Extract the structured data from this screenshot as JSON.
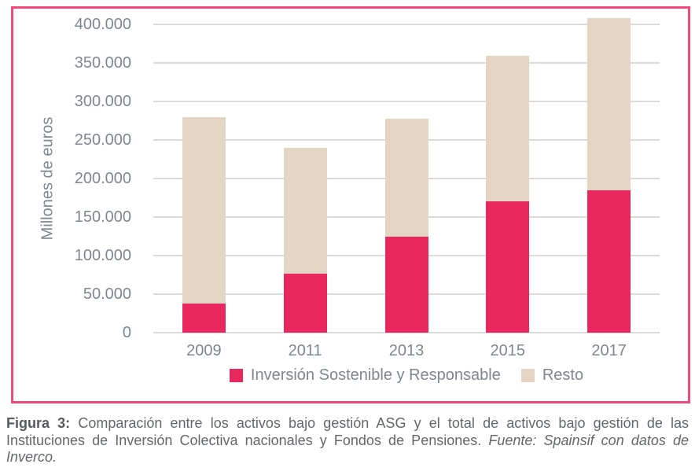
{
  "figure": {
    "caption_label": "Figura 3:",
    "caption_text": " Comparación entre los activos bajo gestión ASG y el total de activos bajo gestión de las Instituciones de Inversión Colectiva nacionales y Fondos de Pensiones. ",
    "caption_source": "Fuente: Spainsif con datos de Inverco."
  },
  "chart_data": {
    "type": "bar",
    "stacked": true,
    "title": "",
    "xlabel": "",
    "ylabel": "Millones de euros",
    "categories": [
      "2009",
      "2011",
      "2013",
      "2015",
      "2017"
    ],
    "series": [
      {
        "name": "Inversión Sostenible y Responsable",
        "color": "#E8275F",
        "values": [
          38000,
          77000,
          124000,
          170000,
          185000
        ]
      },
      {
        "name": "Resto",
        "color": "#E3D4C4",
        "values": [
          242000,
          163000,
          154000,
          189000,
          223000
        ]
      }
    ],
    "stack_totals": [
      280000,
      240000,
      278000,
      359000,
      408000
    ],
    "ylim": [
      0,
      400000
    ],
    "yticks": [
      0,
      50000,
      100000,
      150000,
      200000,
      250000,
      300000,
      350000,
      400000
    ],
    "ytick_labels": [
      "0",
      "50.000",
      "100.000",
      "150.000",
      "200.000",
      "250.000",
      "300.000",
      "350.000",
      "400.000"
    ],
    "grid": true,
    "legend_position": "bottom"
  },
  "colors": {
    "frame_border": "#F2497D",
    "series_isr": "#E8275F",
    "series_resto": "#E3D4C4",
    "gridline": "#DBDBDB",
    "axis_text": "#7E8790",
    "caption_text": "#63676C"
  }
}
